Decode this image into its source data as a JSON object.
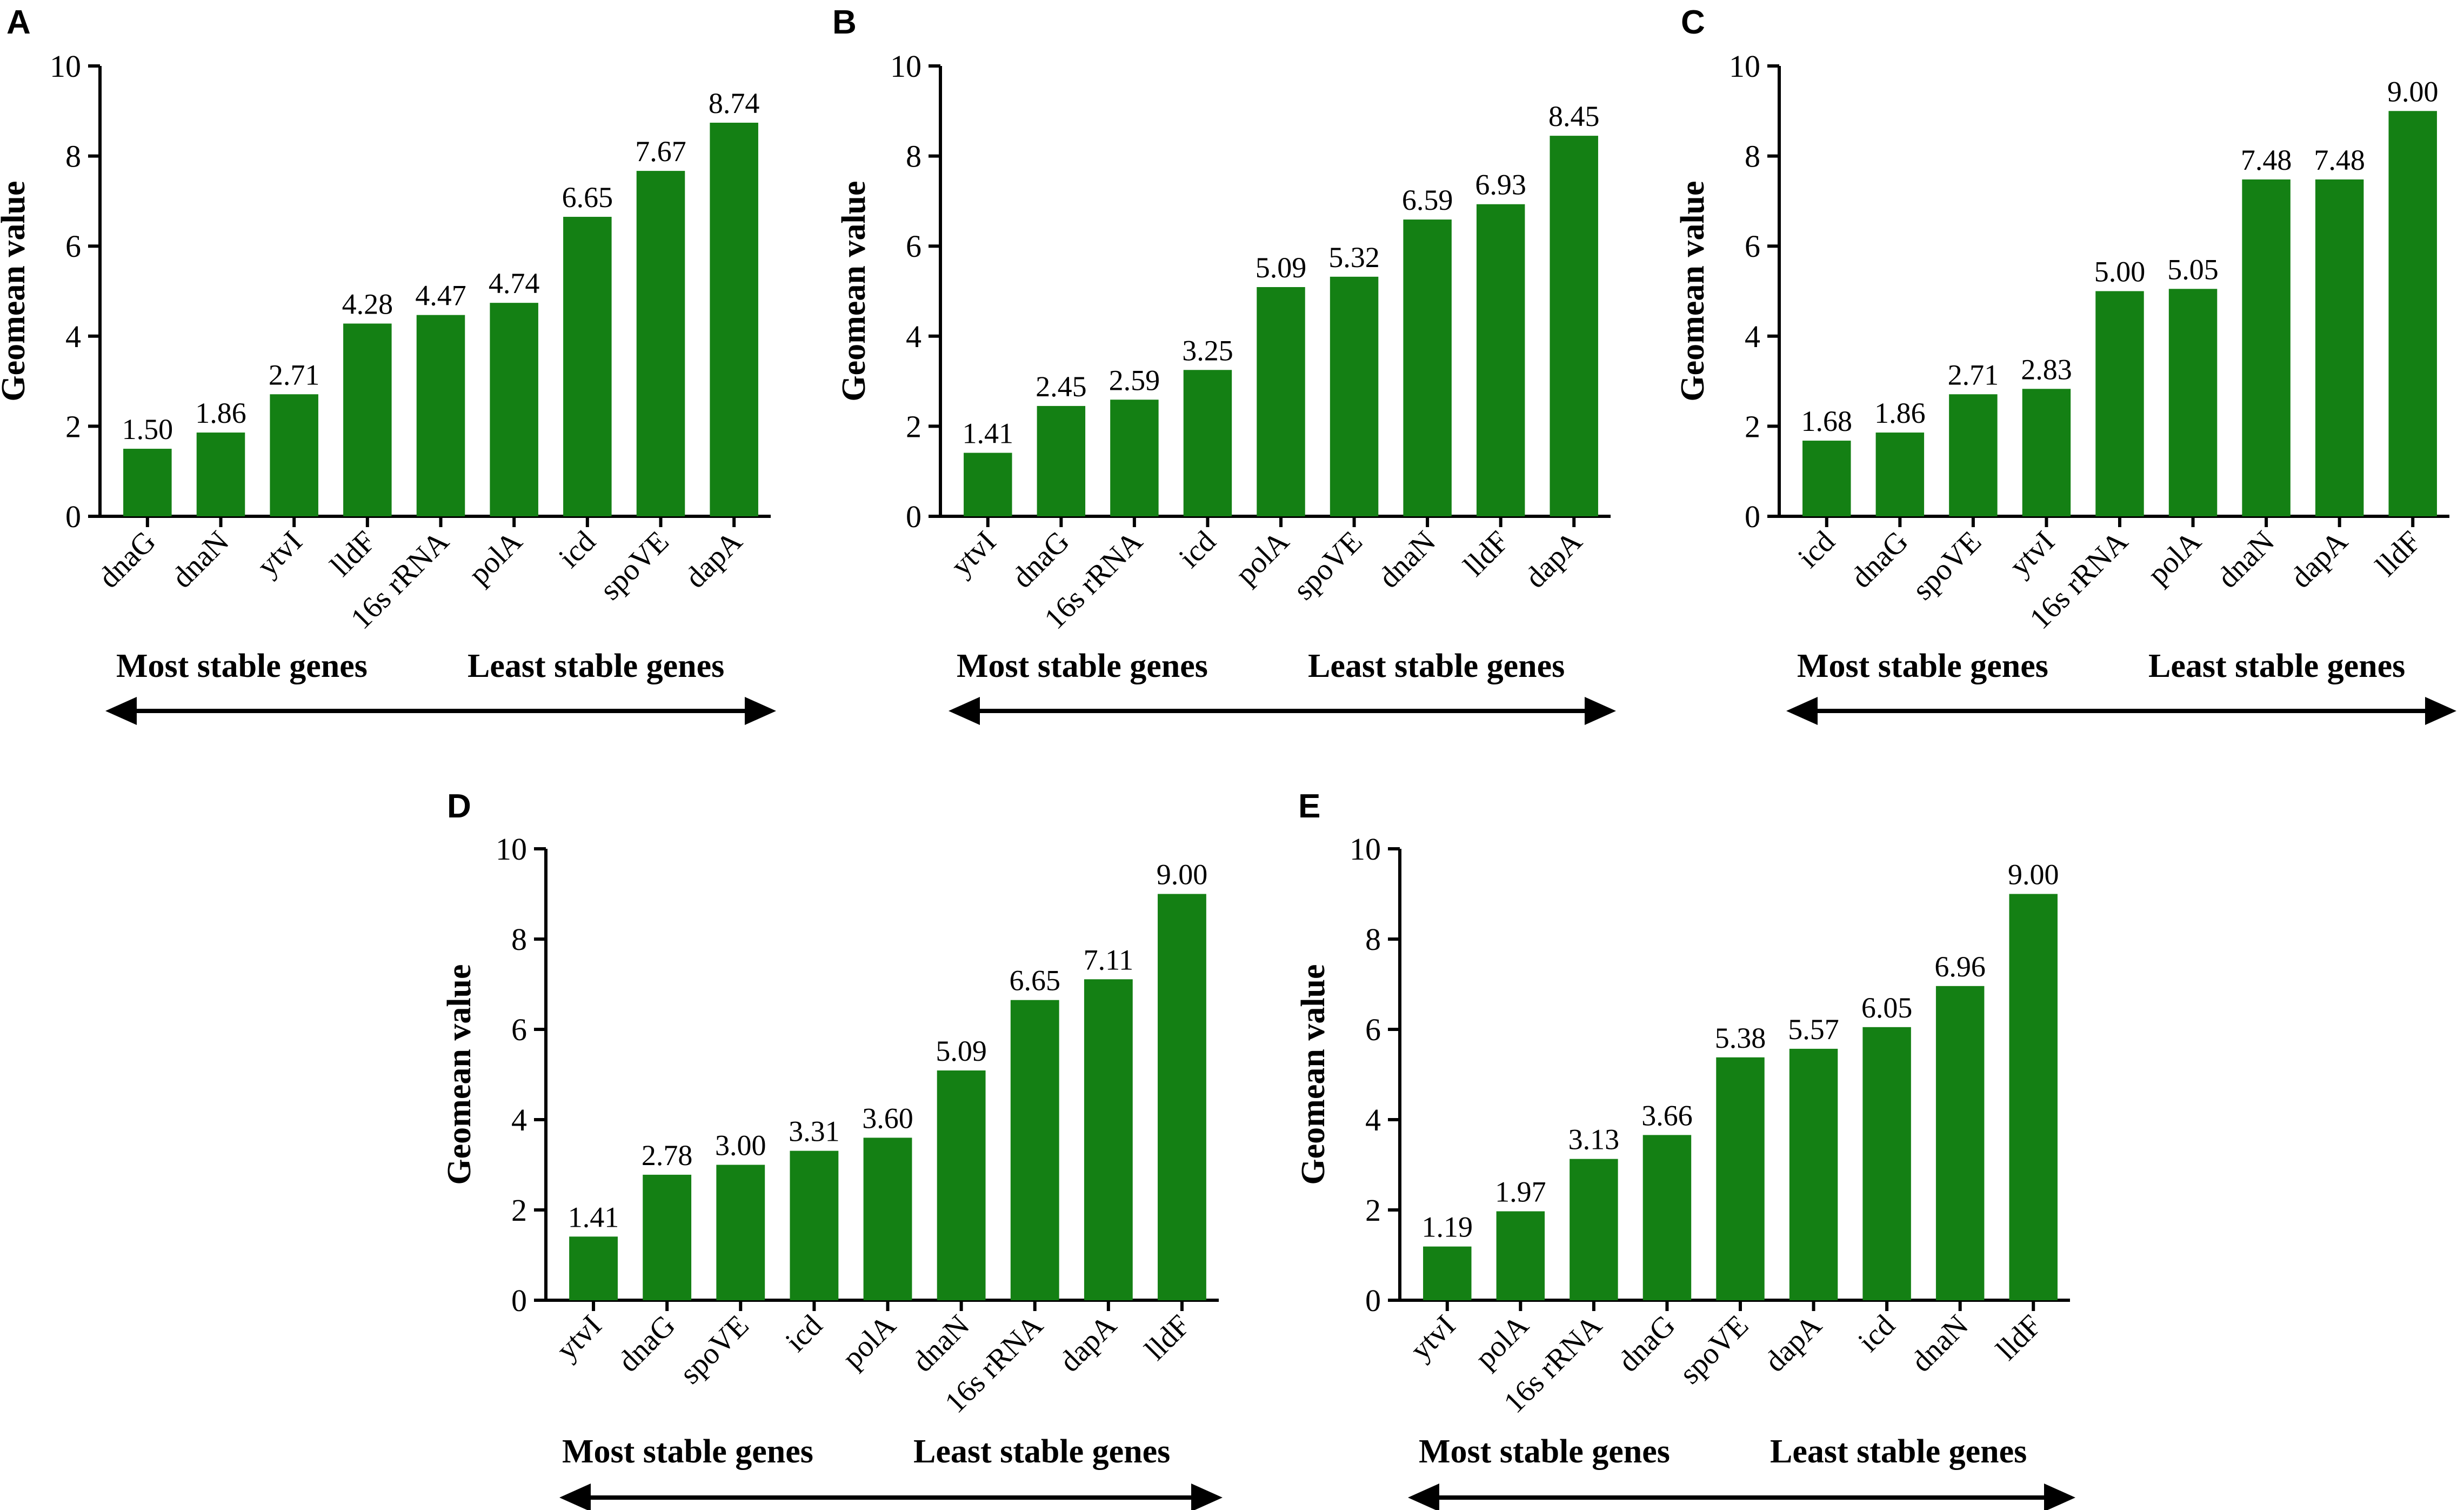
{
  "figure": {
    "colors": {
      "bar": "#148014",
      "axis": "#000000",
      "text": "#000000",
      "background": "#ffffff"
    },
    "arrow_left_label": "Most stable genes",
    "arrow_right_label": "Least stable genes"
  },
  "chart_data": [
    {
      "panel": "A",
      "type": "bar",
      "ylabel": "Geomean value",
      "ylim": [
        0,
        10
      ],
      "yticks": [
        0,
        2,
        4,
        6,
        8,
        10
      ],
      "categories": [
        "dnaG",
        "dnaN",
        "ytvI",
        "lldF",
        "16s rRNA",
        "polA",
        "icd",
        "spoVE",
        "dapA"
      ],
      "values": [
        1.5,
        1.86,
        2.71,
        4.28,
        4.47,
        4.74,
        6.65,
        7.67,
        8.74
      ],
      "labels": [
        "1.50",
        "1.86",
        "2.71",
        "4.28",
        "4.47",
        "4.74",
        "6.65",
        "7.67",
        "8.74"
      ]
    },
    {
      "panel": "B",
      "type": "bar",
      "ylabel": "Geomean value",
      "ylim": [
        0,
        10
      ],
      "yticks": [
        0,
        2,
        4,
        6,
        8,
        10
      ],
      "categories": [
        "ytvI",
        "dnaG",
        "16s rRNA",
        "icd",
        "polA",
        "spoVE",
        "dnaN",
        "lldF",
        "dapA"
      ],
      "values": [
        1.41,
        2.45,
        2.59,
        3.25,
        5.09,
        5.32,
        6.59,
        6.93,
        8.45
      ],
      "labels": [
        "1.41",
        "2.45",
        "2.59",
        "3.25",
        "5.09",
        "5.32",
        "6.59",
        "6.93",
        "8.45"
      ]
    },
    {
      "panel": "C",
      "type": "bar",
      "ylabel": "Geomean value",
      "ylim": [
        0,
        10
      ],
      "yticks": [
        0,
        2,
        4,
        6,
        8,
        10
      ],
      "categories": [
        "icd",
        "dnaG",
        "spoVE",
        "ytvI",
        "16s rRNA",
        "polA",
        "dnaN",
        "dapA",
        "lldF"
      ],
      "values": [
        1.68,
        1.86,
        2.71,
        2.83,
        5.0,
        5.05,
        7.48,
        7.48,
        9.0
      ],
      "labels": [
        "1.68",
        "1.86",
        "2.71",
        "2.83",
        "5.00",
        "5.05",
        "7.48",
        "7.48",
        "9.00"
      ]
    },
    {
      "panel": "D",
      "type": "bar",
      "ylabel": "Geomean value",
      "ylim": [
        0,
        10
      ],
      "yticks": [
        0,
        2,
        4,
        6,
        8,
        10
      ],
      "categories": [
        "ytvI",
        "dnaG",
        "spoVE",
        "icd",
        "polA",
        "dnaN",
        "16s rRNA",
        "dapA",
        "lldF"
      ],
      "values": [
        1.41,
        2.78,
        3.0,
        3.31,
        3.6,
        5.09,
        6.65,
        7.11,
        9.0
      ],
      "labels": [
        "1.41",
        "2.78",
        "3.00",
        "3.31",
        "3.60",
        "5.09",
        "6.65",
        "7.11",
        "9.00"
      ]
    },
    {
      "panel": "E",
      "type": "bar",
      "ylabel": "Geomean value",
      "ylim": [
        0,
        10
      ],
      "yticks": [
        0,
        2,
        4,
        6,
        8,
        10
      ],
      "categories": [
        "ytvI",
        "polA",
        "16s rRNA",
        "dnaG",
        "spoVE",
        "dapA",
        "icd",
        "dnaN",
        "lldF"
      ],
      "values": [
        1.19,
        1.97,
        3.13,
        3.66,
        5.38,
        5.57,
        6.05,
        6.96,
        9.0
      ],
      "labels": [
        "1.19",
        "1.97",
        "3.13",
        "3.66",
        "5.38",
        "5.57",
        "6.05",
        "6.96",
        "9.00"
      ]
    }
  ]
}
